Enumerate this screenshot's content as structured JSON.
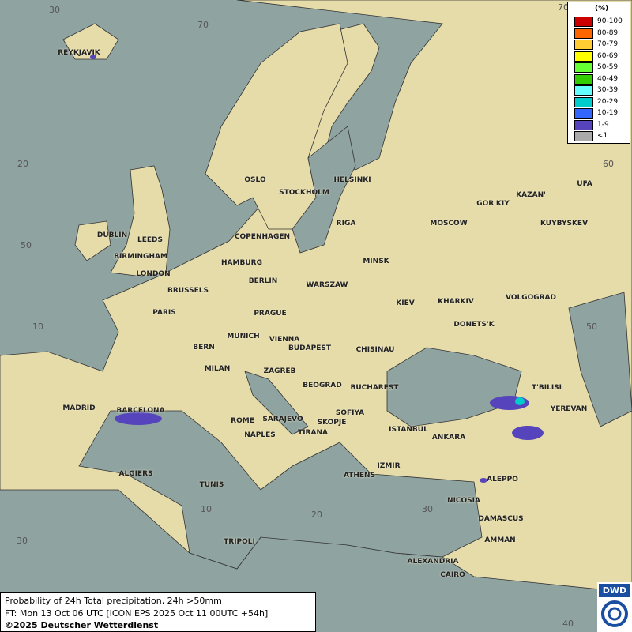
{
  "legend": {
    "title": "(%)",
    "items": [
      {
        "label": "90-100",
        "color": "#cc0000"
      },
      {
        "label": "80-89",
        "color": "#ff6600"
      },
      {
        "label": "70-79",
        "color": "#ffcc33"
      },
      {
        "label": "60-69",
        "color": "#ffff00"
      },
      {
        "label": "50-59",
        "color": "#66ff33"
      },
      {
        "label": "40-49",
        "color": "#33cc00"
      },
      {
        "label": "30-39",
        "color": "#66ffff"
      },
      {
        "label": "20-29",
        "color": "#00cccc"
      },
      {
        "label": "10-19",
        "color": "#3366ff"
      },
      {
        "label": "1-9",
        "color": "#5544bb"
      },
      {
        "label": "<1",
        "color": "#aaaaaa"
      }
    ]
  },
  "info": {
    "line1": "Probability of 24h Total precipitation, 24h >50mm",
    "line2": "FT: Mon 13 Oct 06 UTC [ICON EPS 2025 Oct 11 00UTC +54h]",
    "line3": "©2025 Deutscher Wetterdienst"
  },
  "logo": {
    "text": "DWD"
  },
  "grid_labels": [
    "30",
    "70",
    "20",
    "50",
    "10",
    "60",
    "50",
    "10",
    "20",
    "30",
    "30",
    "40",
    "70"
  ],
  "cities": [
    "REYKJAVIK",
    "OSLO",
    "STOCKHOLM",
    "HELSINKI",
    "DUBLIN",
    "LEEDS",
    "BIRMINGHAM",
    "LONDON",
    "COPENHAGEN",
    "HAMBURG",
    "BERLIN",
    "BRUSSELS",
    "PARIS",
    "RIGA",
    "MINSK",
    "WARSZAW",
    "PRAGUE",
    "MUNICH",
    "VIENNA",
    "BERN",
    "MILAN",
    "BUDAPEST",
    "ZAGREB",
    "SARAJEVO",
    "BEOGRAD",
    "BUCHAREST",
    "SOFIYA",
    "SKOPJE",
    "TIRANA",
    "ROME",
    "NAPLES",
    "MADRID",
    "BARCELONA",
    "ALGIERS",
    "TUNIS",
    "TRIPOLI",
    "ATHENS",
    "IZMIR",
    "ISTANBUL",
    "ANKARA",
    "KIEV",
    "KHARKIV",
    "CHISINAU",
    "DONETS'K",
    "MOSCOW",
    "GOR'KIY",
    "KAZAN'",
    "UFA",
    "KUYBYSKEV",
    "VOLGOGRAD",
    "T'BILISI",
    "YEREVAN",
    "ALEPPO",
    "NICOSIA",
    "DAMASCUS",
    "AMMAN",
    "ALEXANDRIA",
    "CAIRO"
  ]
}
